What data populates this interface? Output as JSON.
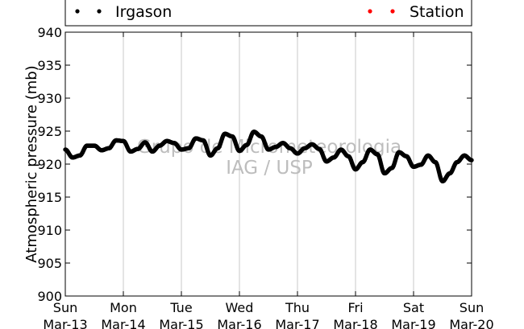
{
  "chart_data": {
    "type": "scatter",
    "ylabel": "Atmospheric pressure (mb)",
    "ylim": [
      900,
      940
    ],
    "yticks": [
      900,
      905,
      910,
      915,
      920,
      925,
      930,
      935,
      940
    ],
    "xlim": [
      "2016-03-13",
      "2016-03-20"
    ],
    "xticks": [
      {
        "day": "Sun",
        "date": "Mar-13"
      },
      {
        "day": "Mon",
        "date": "Mar-14"
      },
      {
        "day": "Tue",
        "date": "Mar-15"
      },
      {
        "day": "Wed",
        "date": "Mar-16"
      },
      {
        "day": "Thu",
        "date": "Mar-17"
      },
      {
        "day": "Fri",
        "date": "Mar-18"
      },
      {
        "day": "Sat",
        "date": "Mar-19"
      },
      {
        "day": "Sun",
        "date": "Mar-20"
      }
    ],
    "grid": "vertical",
    "legend_position": "top",
    "series": [
      {
        "name": "Irgason",
        "color": "#000000",
        "x": [
          "2016-03-13 00:00",
          "2016-03-13 03:00",
          "2016-03-13 06:00",
          "2016-03-13 09:00",
          "2016-03-13 12:00",
          "2016-03-13 15:00",
          "2016-03-13 18:00",
          "2016-03-13 21:00",
          "2016-03-14 00:00",
          "2016-03-14 03:00",
          "2016-03-14 06:00",
          "2016-03-14 09:00",
          "2016-03-14 12:00",
          "2016-03-14 15:00",
          "2016-03-14 18:00",
          "2016-03-14 21:00",
          "2016-03-15 00:00",
          "2016-03-15 03:00",
          "2016-03-15 06:00",
          "2016-03-15 09:00",
          "2016-03-15 12:00",
          "2016-03-15 15:00",
          "2016-03-15 18:00",
          "2016-03-15 21:00",
          "2016-03-16 00:00",
          "2016-03-16 03:00",
          "2016-03-16 06:00",
          "2016-03-16 09:00",
          "2016-03-16 12:00",
          "2016-03-16 15:00",
          "2016-03-16 18:00",
          "2016-03-16 21:00",
          "2016-03-17 00:00",
          "2016-03-17 03:00",
          "2016-03-17 06:00",
          "2016-03-17 09:00",
          "2016-03-17 12:00",
          "2016-03-17 15:00",
          "2016-03-17 18:00",
          "2016-03-17 21:00",
          "2016-03-18 00:00",
          "2016-03-18 03:00",
          "2016-03-18 06:00",
          "2016-03-18 09:00",
          "2016-03-18 12:00",
          "2016-03-18 15:00",
          "2016-03-18 18:00",
          "2016-03-18 21:00",
          "2016-03-19 00:00",
          "2016-03-19 03:00",
          "2016-03-19 06:00",
          "2016-03-19 09:00",
          "2016-03-19 12:00",
          "2016-03-19 15:00",
          "2016-03-19 18:00",
          "2016-03-19 21:00",
          "2016-03-20 00:00"
        ],
        "y": [
          922.2,
          921.0,
          921.3,
          922.8,
          922.8,
          922.1,
          922.4,
          923.6,
          923.5,
          921.9,
          922.3,
          923.3,
          921.9,
          922.8,
          923.5,
          923.2,
          922.2,
          922.4,
          923.9,
          923.6,
          921.3,
          922.4,
          924.6,
          924.2,
          922.0,
          922.9,
          924.9,
          924.2,
          922.2,
          922.6,
          923.2,
          922.4,
          921.6,
          922.4,
          923.0,
          922.3,
          920.4,
          921.0,
          922.2,
          921.2,
          919.2,
          920.3,
          922.2,
          921.5,
          918.6,
          919.4,
          921.8,
          921.2,
          919.6,
          919.9,
          921.3,
          920.3,
          917.4,
          918.6,
          920.3,
          921.3,
          920.6
        ]
      },
      {
        "name": "Station",
        "color": "#ff0000",
        "x": [],
        "y": []
      }
    ],
    "annotations": [
      "Grupo de Micrometeorologia",
      "IAG / USP"
    ]
  }
}
